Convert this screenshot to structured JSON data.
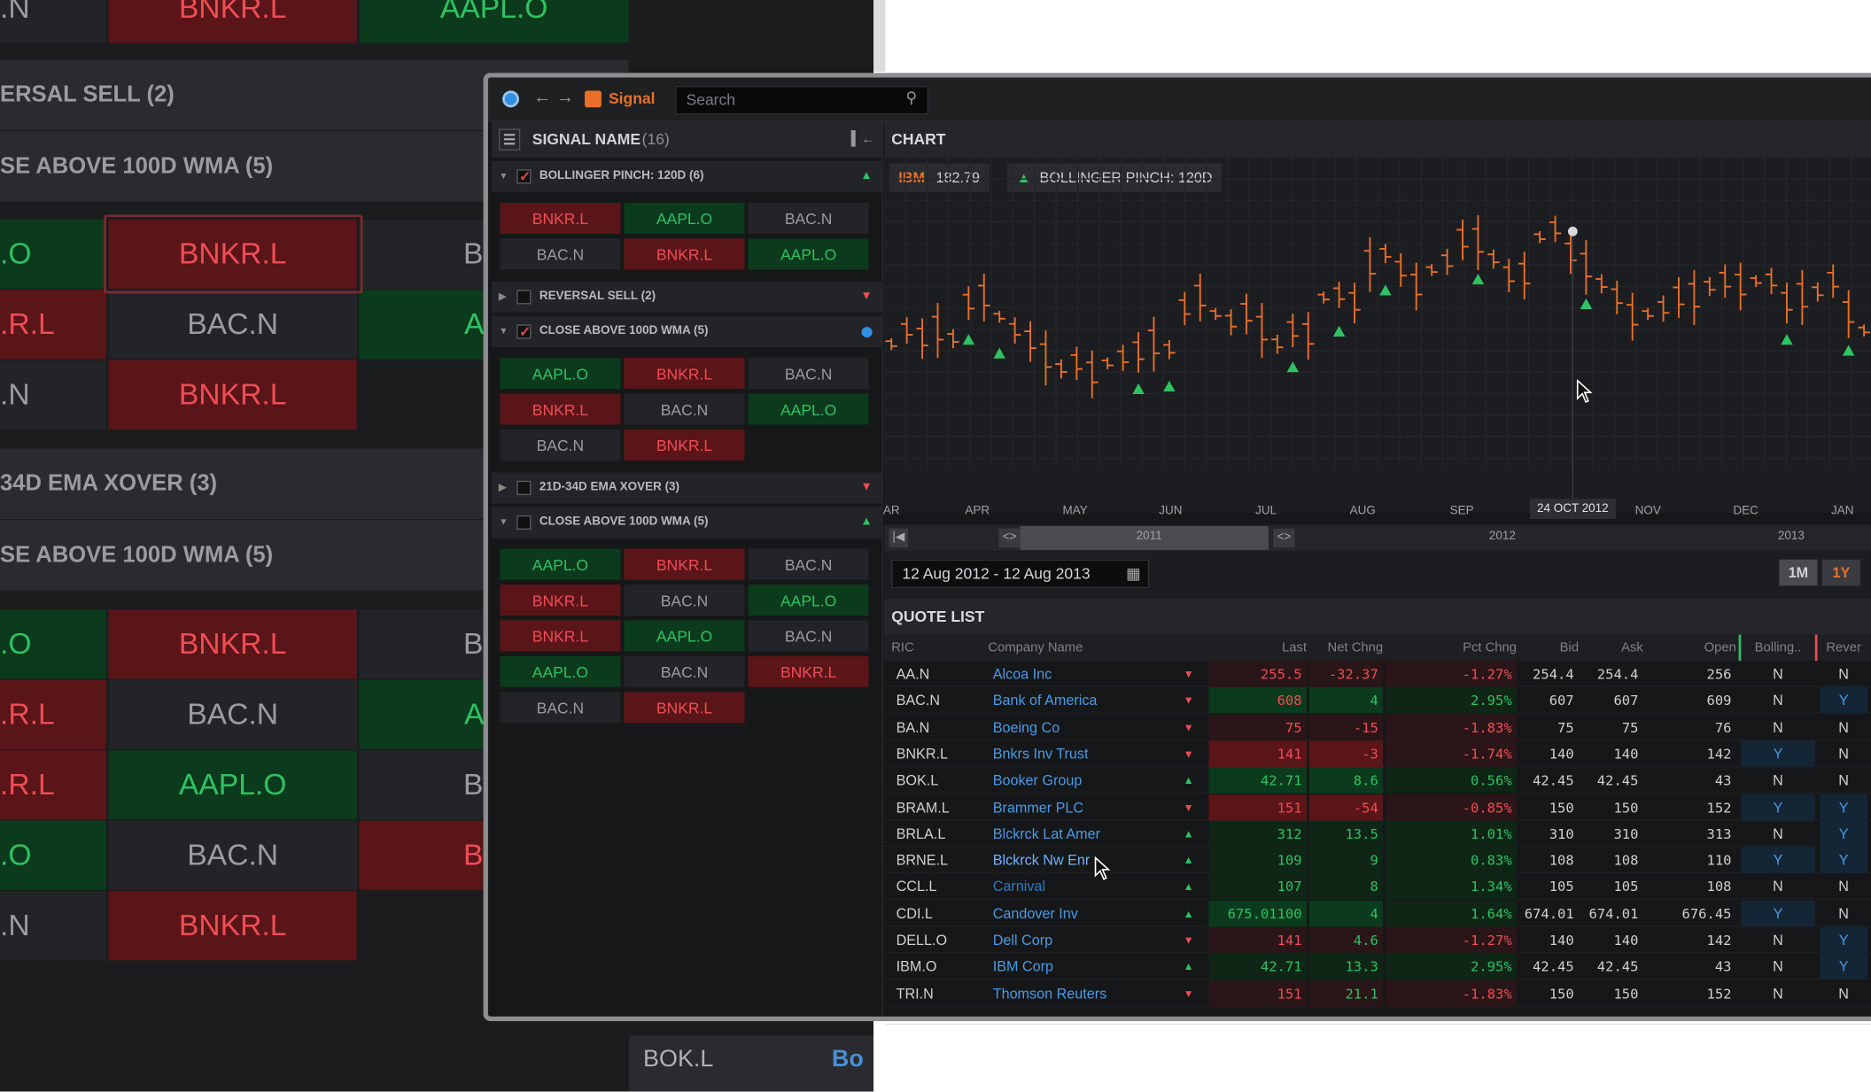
{
  "background": {
    "rows": [
      {
        "text": "ERSAL SELL (2)",
        "top": 0
      },
      {
        "text": "SE ABOVE 100D WMA (5)",
        "top": 0
      },
      {
        "text": "34D EMA XOVER (3)",
        "top": 0
      },
      {
        "text": "SE ABOVE 100D WMA (5)",
        "top": 0
      }
    ],
    "top_cells": [
      ".N",
      "BNKR.L",
      "AAPL.O"
    ],
    "grid_a": [
      [
        ".O",
        "BNKR.L",
        "BAC"
      ],
      [
        ".R.L",
        "BAC.N",
        "AAP"
      ],
      [
        ".N",
        "BNKR.L",
        ""
      ]
    ],
    "grid_b": [
      [
        ".O",
        "BNKR.L",
        "BAC"
      ],
      [
        ".R.L",
        "BAC.N",
        "AAP"
      ],
      [
        ".R.L",
        "AAPL.O",
        "BAC"
      ],
      [
        ".O",
        "BAC.N",
        "BNK"
      ],
      [
        ".N",
        "BNKR.L",
        ""
      ]
    ],
    "bottom": {
      "ric": "BOK.L",
      "name_fragment": "Bo"
    }
  },
  "titlebar": {
    "app_name": "Signal",
    "search_placeholder": "Search"
  },
  "signals_panel": {
    "title": "SIGNAL NAME",
    "count": "(16)",
    "groups": [
      {
        "name": "BOLLINGER PINCH: 120D (6)",
        "expanded": true,
        "checked": true,
        "indicator": "up",
        "tiles": [
          [
            "BNKR.L",
            "r"
          ],
          [
            "AAPL.O",
            "g"
          ],
          [
            "BAC.N",
            "n"
          ],
          [
            "BAC.N",
            "n"
          ],
          [
            "BNKR.L",
            "r"
          ],
          [
            "AAPL.O",
            "g"
          ]
        ]
      },
      {
        "name": "REVERSAL SELL (2)",
        "expanded": false,
        "checked": false,
        "indicator": "down",
        "tiles": []
      },
      {
        "name": "CLOSE ABOVE 100D WMA (5)",
        "expanded": true,
        "checked": true,
        "indicator": "dot",
        "tiles": [
          [
            "AAPL.O",
            "g"
          ],
          [
            "BNKR.L",
            "r"
          ],
          [
            "BAC.N",
            "n"
          ],
          [
            "BNKR.L",
            "r"
          ],
          [
            "BAC.N",
            "n"
          ],
          [
            "AAPL.O",
            "g"
          ],
          [
            "BAC.N",
            "n"
          ],
          [
            "BNKR.L",
            "r"
          ]
        ]
      },
      {
        "name": "21D-34D EMA XOVER (3)",
        "expanded": false,
        "checked": false,
        "indicator": "down",
        "tiles": []
      },
      {
        "name": "CLOSE ABOVE 100D WMA (5)",
        "expanded": true,
        "checked": false,
        "indicator": "up",
        "tiles": [
          [
            "AAPL.O",
            "g"
          ],
          [
            "BNKR.L",
            "r"
          ],
          [
            "BAC.N",
            "n"
          ],
          [
            "BNKR.L",
            "r"
          ],
          [
            "BAC.N",
            "n"
          ],
          [
            "AAPL.O",
            "g"
          ],
          [
            "BNKR.L",
            "r"
          ],
          [
            "AAPL.O",
            "g"
          ],
          [
            "BAC.N",
            "n"
          ],
          [
            "AAPL.O",
            "g"
          ],
          [
            "BAC.N",
            "n"
          ],
          [
            "BNKR.L",
            "r"
          ],
          [
            "BAC.N",
            "n"
          ],
          [
            "BNKR.L",
            "r"
          ]
        ]
      }
    ]
  },
  "chart": {
    "title": "CHART",
    "legend_symbol": "IBM",
    "legend_price": "182.79",
    "legend_signal": "BOLLINGER PINCH: 120D",
    "crosshair_label": "24 OCT 2012",
    "months": [
      "AR",
      "APR",
      "MAY",
      "JUN",
      "JUL",
      "AUG",
      "SEP",
      "NOV",
      "DEC",
      "JAN"
    ],
    "years": [
      "2011",
      "2012",
      "2013"
    ],
    "date_range": "12 Aug 2012 - 12 Aug 2013",
    "zoom_options": [
      "1M",
      "1Y"
    ],
    "zoom_selected": "1Y",
    "colors": {
      "bars": "#e8702a",
      "markers": "#2fc262"
    }
  },
  "chart_data": {
    "type": "line",
    "title": "",
    "xlabel": "",
    "ylabel": "",
    "series": [
      {
        "values": [
          0.45,
          0.5,
          0.47,
          0.5,
          0.47,
          0.6,
          0.62,
          0.55,
          0.5,
          0.46,
          0.4,
          0.36,
          0.38,
          0.34,
          0.38,
          0.4,
          0.42,
          0.45,
          0.43,
          0.58,
          0.62,
          0.56,
          0.53,
          0.56,
          0.5,
          0.45,
          0.5,
          0.48,
          0.62,
          0.63,
          0.6,
          0.74,
          0.78,
          0.72,
          0.66,
          0.72,
          0.75,
          0.83,
          0.82,
          0.76,
          0.7,
          0.7,
          0.84,
          0.87,
          0.78,
          0.73,
          0.67,
          0.62,
          0.55,
          0.56,
          0.58,
          0.62,
          0.62,
          0.66,
          0.68,
          0.66,
          0.68,
          0.68,
          0.6,
          0.62,
          0.64,
          0.68,
          0.56,
          0.5
        ]
      }
    ],
    "markers": [
      0.08,
      0.11,
      0.26,
      0.29,
      0.41,
      0.46,
      0.5,
      0.6,
      0.71,
      0.91,
      0.97
    ]
  },
  "quote_list": {
    "title": "QUOTE LIST",
    "columns": [
      "RIC",
      "Company Name",
      "",
      "Last",
      "Net Chng",
      "Pct Chng",
      "Bid",
      "Ask",
      "Open",
      "Bolling..",
      "Rever"
    ],
    "rows": [
      {
        "ric": "AA.N",
        "name": "Alcoa Inc",
        "dir": "down",
        "last": "255.5",
        "net": "-32.37",
        "pct": "-1.27%",
        "bid": "254.4",
        "ask": "254.4",
        "open": "256",
        "b": "N",
        "r": "N"
      },
      {
        "ric": "BAC.N",
        "name": "Bank of America",
        "dir": "down",
        "last": "608",
        "net": "4",
        "pct": "2.95%",
        "bid": "607",
        "ask": "607",
        "open": "609",
        "b": "N",
        "r": "Y"
      },
      {
        "ric": "BA.N",
        "name": "Boeing Co",
        "dir": "down",
        "last": "75",
        "net": "-15",
        "pct": "-1.83%",
        "bid": "75",
        "ask": "75",
        "open": "76",
        "b": "N",
        "r": "N"
      },
      {
        "ric": "BNKR.L",
        "name": "Bnkrs Inv Trust",
        "dir": "down",
        "last": "141",
        "net": "-3",
        "pct": "-1.74%",
        "bid": "140",
        "ask": "140",
        "open": "142",
        "b": "Y",
        "r": "N"
      },
      {
        "ric": "BOK.L",
        "name": "Booker Group",
        "dir": "up",
        "last": "42.71",
        "net": "8.6",
        "pct": "0.56%",
        "bid": "42.45",
        "ask": "42.45",
        "open": "43",
        "b": "N",
        "r": "N"
      },
      {
        "ric": "BRAM.L",
        "name": "Brammer PLC",
        "dir": "down",
        "last": "151",
        "net": "-54",
        "pct": "-0.85%",
        "bid": "150",
        "ask": "150",
        "open": "152",
        "b": "Y",
        "r": "Y"
      },
      {
        "ric": "BRLA.L",
        "name": "Blckrck Lat Amer",
        "dir": "up",
        "last": "312",
        "net": "13.5",
        "pct": "1.01%",
        "bid": "310",
        "ask": "310",
        "open": "313",
        "b": "N",
        "r": "Y"
      },
      {
        "ric": "BRNE.L",
        "name": "Blckrck Nw Enr",
        "dir": "up",
        "last": "109",
        "net": "9",
        "pct": "0.83%",
        "bid": "108",
        "ask": "108",
        "open": "110",
        "b": "Y",
        "r": "Y"
      },
      {
        "ric": "CCL.L",
        "name": "Carnival",
        "dir": "up",
        "last": "107",
        "net": "8",
        "pct": "1.34%",
        "bid": "105",
        "ask": "105",
        "open": "108",
        "b": "N",
        "r": "N"
      },
      {
        "ric": "CDI.L",
        "name": "Candover Inv",
        "dir": "up",
        "last": "675.01100",
        "net": "4",
        "pct": "1.64%",
        "bid": "674.01",
        "ask": "674.01",
        "open": "676.45",
        "b": "Y",
        "r": "N"
      },
      {
        "ric": "DELL.O",
        "name": "Dell Corp",
        "dir": "down",
        "last": "141",
        "net": "4.6",
        "pct": "-1.27%",
        "bid": "140",
        "ask": "140",
        "open": "142",
        "b": "N",
        "r": "Y"
      },
      {
        "ric": "IBM.O",
        "name": "IBM Corp",
        "dir": "up",
        "last": "42.71",
        "net": "13.3",
        "pct": "2.95%",
        "bid": "42.45",
        "ask": "42.45",
        "open": "43",
        "b": "N",
        "r": "Y"
      },
      {
        "ric": "TRI.N",
        "name": "Thomson Reuters",
        "dir": "down",
        "last": "151",
        "net": "21.1",
        "pct": "-1.83%",
        "bid": "150",
        "ask": "150",
        "open": "152",
        "b": "N",
        "r": "N"
      }
    ]
  }
}
